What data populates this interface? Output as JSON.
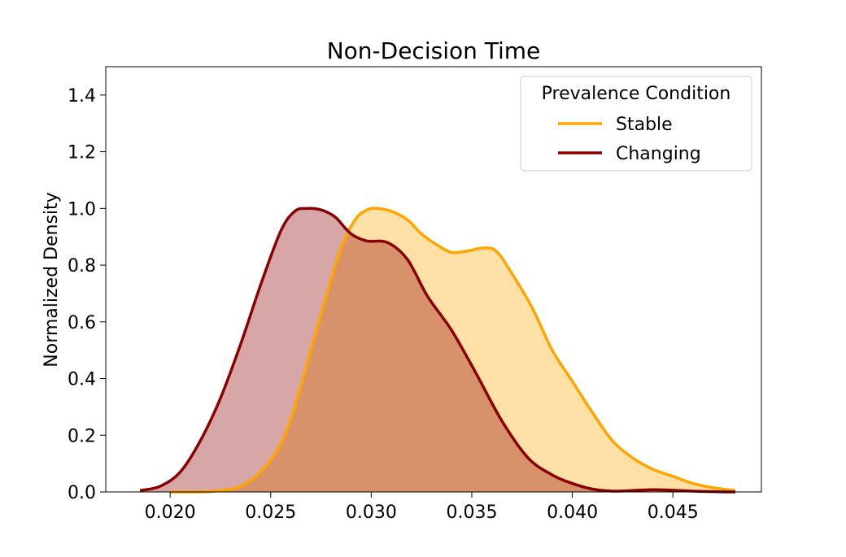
{
  "chart_data": {
    "type": "area",
    "title": "Non-Decision Time",
    "xlabel": "",
    "ylabel": "Normalized Density",
    "xlim": [
      0.0168,
      0.0494
    ],
    "ylim": [
      0,
      1.5
    ],
    "xticks": [
      0.02,
      0.025,
      0.03,
      0.035,
      0.04,
      0.045
    ],
    "xtick_labels": [
      "0.020",
      "0.025",
      "0.030",
      "0.035",
      "0.040",
      "0.045"
    ],
    "yticks": [
      0.0,
      0.2,
      0.4,
      0.6,
      0.8,
      1.0,
      1.2,
      1.4
    ],
    "ytick_labels": [
      "0.0",
      "0.2",
      "0.4",
      "0.6",
      "0.8",
      "1.0",
      "1.2",
      "1.4"
    ],
    "grid": false,
    "legend": {
      "title": "Prevalence Condition",
      "placement": "top-right"
    },
    "series": [
      {
        "name": "Stable",
        "color": "#FFA500",
        "fill_color": "#FFA500",
        "fill_opacity": 0.35,
        "x": [
          0.02,
          0.0215,
          0.0225,
          0.0235,
          0.0245,
          0.0255,
          0.0262,
          0.027,
          0.0278,
          0.0285,
          0.0292,
          0.0298,
          0.0303,
          0.031,
          0.0318,
          0.0325,
          0.0333,
          0.034,
          0.0348,
          0.0355,
          0.0362,
          0.037,
          0.038,
          0.039,
          0.04,
          0.041,
          0.042,
          0.043,
          0.044,
          0.045,
          0.046,
          0.047,
          0.0481
        ],
        "y": [
          0.0,
          0.0,
          0.005,
          0.02,
          0.07,
          0.17,
          0.3,
          0.5,
          0.7,
          0.86,
          0.96,
          0.995,
          1.0,
          0.99,
          0.96,
          0.91,
          0.87,
          0.845,
          0.85,
          0.86,
          0.85,
          0.77,
          0.65,
          0.5,
          0.39,
          0.28,
          0.18,
          0.12,
          0.08,
          0.055,
          0.03,
          0.015,
          0.005
        ]
      },
      {
        "name": "Changing",
        "color": "#8B0000",
        "fill_color": "#8B0000",
        "fill_opacity": 0.35,
        "x": [
          0.0185,
          0.0195,
          0.0205,
          0.0215,
          0.0225,
          0.0235,
          0.0245,
          0.0255,
          0.0262,
          0.0268,
          0.0275,
          0.0282,
          0.029,
          0.0298,
          0.0308,
          0.0318,
          0.0328,
          0.034,
          0.0352,
          0.0365,
          0.0378,
          0.039,
          0.04,
          0.041,
          0.042,
          0.043,
          0.044,
          0.045,
          0.046,
          0.047,
          0.0481
        ],
        "y": [
          0.005,
          0.02,
          0.07,
          0.18,
          0.33,
          0.52,
          0.73,
          0.92,
          0.99,
          1.0,
          0.995,
          0.97,
          0.91,
          0.885,
          0.88,
          0.82,
          0.69,
          0.57,
          0.42,
          0.25,
          0.12,
          0.06,
          0.03,
          0.01,
          0.003,
          0.005,
          0.008,
          0.006,
          0.003,
          0.001,
          0.0
        ]
      }
    ]
  }
}
